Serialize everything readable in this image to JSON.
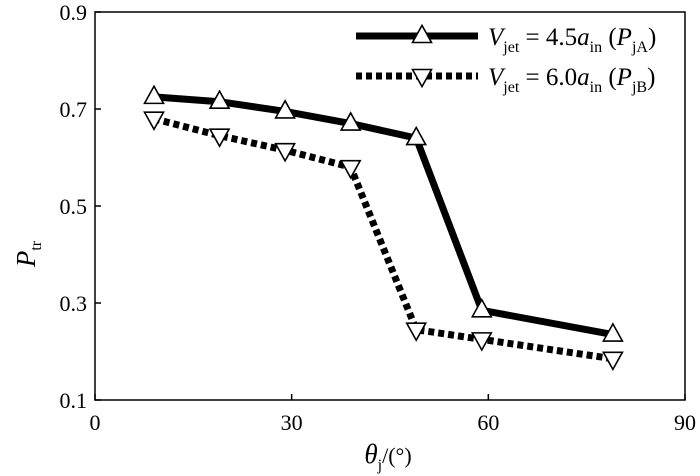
{
  "chart_data": {
    "type": "line",
    "x_axis": {
      "symbol": "θ",
      "subscript": "j",
      "unit": "/(°)",
      "ticks": [
        "0",
        "30",
        "60",
        "90"
      ],
      "range": [
        0,
        90
      ]
    },
    "y_axis": {
      "symbol": "P",
      "subscript": "tr",
      "ticks": [
        "0.1",
        "0.3",
        "0.5",
        "0.7",
        "0.9"
      ],
      "range": [
        0.1,
        0.9
      ]
    },
    "grid": false,
    "legend_position": "top-right",
    "series": [
      {
        "name": "V_jet = 4.5a_in (P_jA)",
        "legend": {
          "v": "V",
          "v_sub": "jet",
          "eq": " = 4.5",
          "a": "a",
          "a_sub": "in",
          "paren_open": " (",
          "p": "P",
          "p_sub": "jA",
          "paren_close": ")"
        },
        "line_style": "solid",
        "marker": "triangle-up",
        "color": "#000000",
        "points": [
          {
            "x": 9,
            "y": 0.725
          },
          {
            "x": 19,
            "y": 0.715
          },
          {
            "x": 29,
            "y": 0.695
          },
          {
            "x": 39,
            "y": 0.67
          },
          {
            "x": 49,
            "y": 0.64
          },
          {
            "x": 59,
            "y": 0.285
          },
          {
            "x": 79,
            "y": 0.235
          }
        ]
      },
      {
        "name": "V_jet = 6.0a_in (P_jB)",
        "legend": {
          "v": "V",
          "v_sub": "jet",
          "eq": " = 6.0",
          "a": "a",
          "a_sub": "in",
          "paren_open": " (",
          "p": "P",
          "p_sub": "jB",
          "paren_close": ")"
        },
        "line_style": "dotted",
        "marker": "triangle-down",
        "color": "#000000",
        "points": [
          {
            "x": 9,
            "y": 0.68
          },
          {
            "x": 19,
            "y": 0.645
          },
          {
            "x": 29,
            "y": 0.615
          },
          {
            "x": 39,
            "y": 0.58
          },
          {
            "x": 49,
            "y": 0.245
          },
          {
            "x": 59,
            "y": 0.225
          },
          {
            "x": 79,
            "y": 0.185
          }
        ]
      }
    ]
  }
}
